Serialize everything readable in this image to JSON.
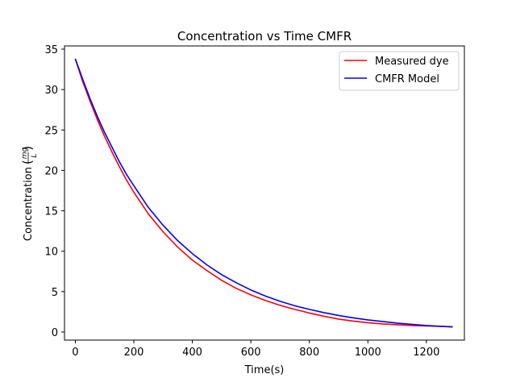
{
  "chart_data": {
    "type": "line",
    "title": "Concentration vs Time CMFR",
    "xlabel": "Time(s)",
    "ylabel": "Concentration",
    "ylabel_unit_num": "mg",
    "ylabel_unit_den": "L",
    "xlim": [
      -37,
      1330
    ],
    "ylim": [
      -1.0,
      35.4
    ],
    "xticks": [
      0,
      200,
      400,
      600,
      800,
      1000,
      1200
    ],
    "yticks": [
      0,
      5,
      10,
      15,
      20,
      25,
      30,
      35
    ],
    "legend_position": "top-right",
    "grid": false,
    "x": [
      0,
      25,
      50,
      75,
      100,
      125,
      150,
      175,
      200,
      250,
      300,
      350,
      400,
      450,
      500,
      550,
      600,
      650,
      700,
      750,
      800,
      850,
      900,
      950,
      1000,
      1050,
      1100,
      1150,
      1200,
      1250,
      1290
    ],
    "series": [
      {
        "name": "Measured dye",
        "color": "#ff0000",
        "values": [
          33.8,
          31.0,
          28.6,
          26.3,
          24.2,
          22.3,
          20.5,
          18.8,
          17.3,
          14.6,
          12.4,
          10.5,
          8.9,
          7.6,
          6.4,
          5.4,
          4.6,
          3.9,
          3.3,
          2.8,
          2.35,
          1.95,
          1.6,
          1.35,
          1.15,
          1.0,
          0.9,
          0.8,
          0.75,
          0.7,
          0.65
        ]
      },
      {
        "name": "CMFR Model",
        "color": "#0000ff",
        "values": [
          33.8,
          31.3,
          28.9,
          26.7,
          24.7,
          22.9,
          21.1,
          19.5,
          18.1,
          15.4,
          13.2,
          11.3,
          9.7,
          8.3,
          7.1,
          6.1,
          5.2,
          4.45,
          3.8,
          3.25,
          2.8,
          2.4,
          2.05,
          1.75,
          1.5,
          1.3,
          1.1,
          0.95,
          0.8,
          0.7,
          0.62
        ]
      }
    ]
  }
}
